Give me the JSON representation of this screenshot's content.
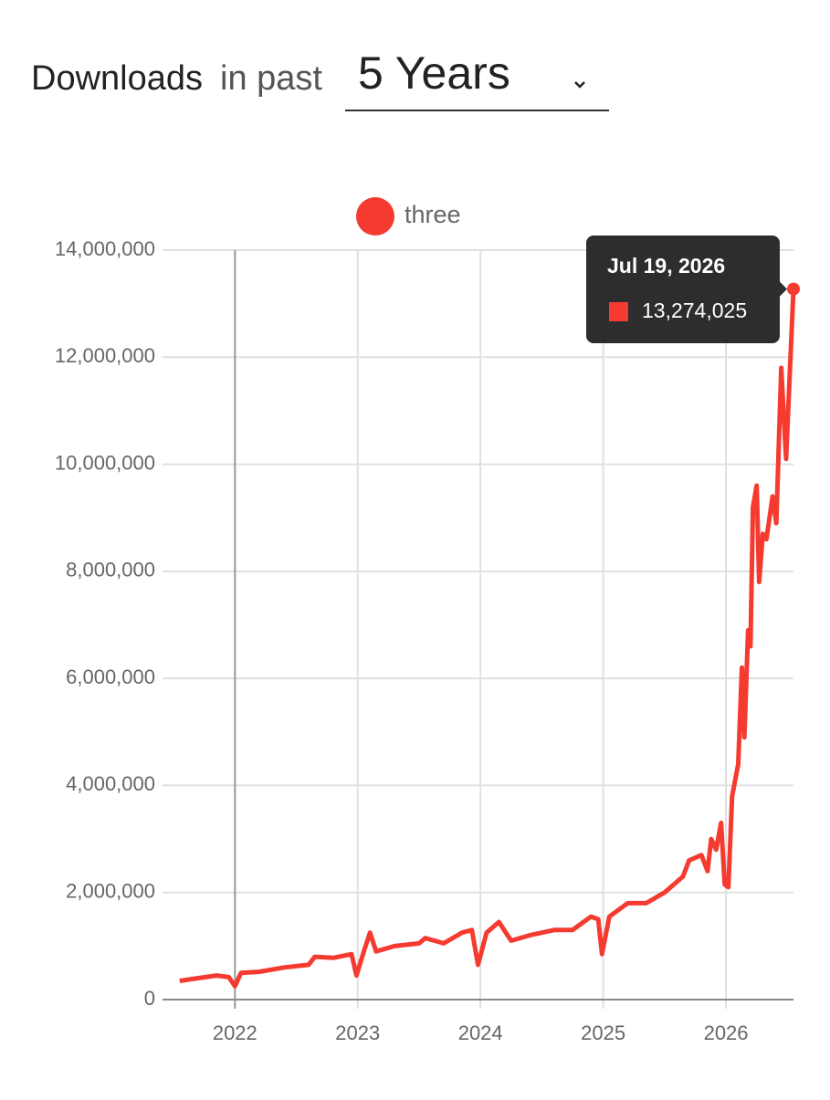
{
  "header": {
    "title": "Downloads",
    "connector": "in past",
    "period": "5 Years"
  },
  "chart_data": {
    "type": "line",
    "x": [
      2021.55,
      2021.7,
      2021.85,
      2021.95,
      2022.0,
      2022.05,
      2022.2,
      2022.4,
      2022.6,
      2022.65,
      2022.8,
      2022.95,
      2022.99,
      2023.05,
      2023.1,
      2023.15,
      2023.3,
      2023.5,
      2023.55,
      2023.7,
      2023.85,
      2023.93,
      2023.98,
      2024.05,
      2024.15,
      2024.25,
      2024.4,
      2024.6,
      2024.75,
      2024.9,
      2024.96,
      2024.99,
      2025.05,
      2025.2,
      2025.35,
      2025.5,
      2025.65,
      2025.7,
      2025.8,
      2025.85,
      2025.88,
      2025.92,
      2025.96,
      2025.99,
      2026.02,
      2026.05,
      2026.1,
      2026.13,
      2026.15,
      2026.18,
      2026.2,
      2026.22,
      2026.25,
      2026.27,
      2026.3,
      2026.33,
      2026.38,
      2026.41,
      2026.45,
      2026.49,
      2026.55
    ],
    "series": [
      {
        "name": "three",
        "color": "#f53a30",
        "values": [
          350000,
          400000,
          450000,
          420000,
          250000,
          500000,
          520000,
          600000,
          650000,
          800000,
          780000,
          850000,
          450000,
          900000,
          1250000,
          900000,
          1000000,
          1050000,
          1150000,
          1050000,
          1250000,
          1300000,
          650000,
          1250000,
          1450000,
          1100000,
          1200000,
          1300000,
          1300000,
          1550000,
          1500000,
          850000,
          1550000,
          1800000,
          1800000,
          2000000,
          2300000,
          2600000,
          2700000,
          2400000,
          3000000,
          2800000,
          3300000,
          2150000,
          2100000,
          3800000,
          4400000,
          6200000,
          4900000,
          6900000,
          6600000,
          9200000,
          9600000,
          7800000,
          8700000,
          8600000,
          9400000,
          8900000,
          11800000,
          10100000,
          13274025
        ]
      }
    ],
    "xlim": [
      2021.41,
      2026.55
    ],
    "xticks": [
      2022,
      2023,
      2024,
      2025,
      2026
    ],
    "ylim": [
      0,
      14000000
    ],
    "yticks": [
      0,
      {
        "value": 2000000,
        "label": "2,000,000"
      },
      {
        "value": 4000000,
        "label": "4,000,000"
      },
      {
        "value": 6000000,
        "label": "6,000,000"
      },
      {
        "value": 8000000,
        "label": "8,000,000"
      },
      {
        "value": 10000000,
        "label": "10,000,000"
      },
      {
        "value": 12000000,
        "label": "12,000,000"
      },
      {
        "value": 14000000,
        "label": "14,000,000"
      }
    ],
    "grid": true,
    "tooltip": {
      "title": "Jul 19, 2026",
      "value_label": "13,274,025"
    }
  }
}
